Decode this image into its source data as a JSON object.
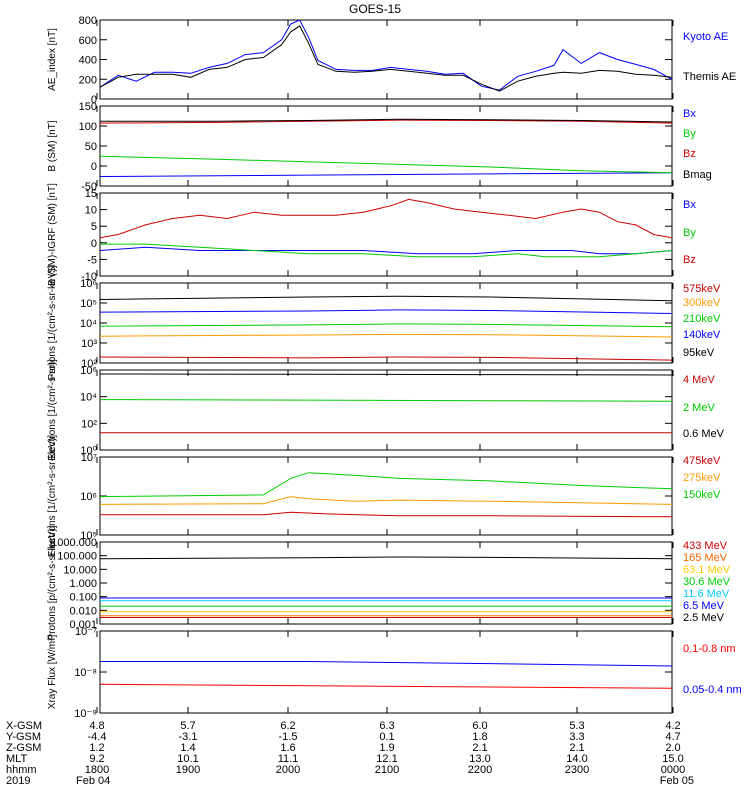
{
  "title": "GOES-15",
  "time_axis": {
    "ticks": [
      "1800",
      "1900",
      "2000",
      "2100",
      "2200",
      "2300",
      "0000"
    ],
    "date_labels": [
      "Feb 04",
      "Feb 05"
    ],
    "rows": [
      {
        "label": "X-GSM",
        "values": [
          "4.8",
          "5.7",
          "6.2",
          "6.3",
          "6.0",
          "5.3",
          "4.2"
        ]
      },
      {
        "label": "Y-GSM",
        "values": [
          "-4.4",
          "-3.1",
          "-1.5",
          "0.1",
          "1.8",
          "3.3",
          "4.7"
        ]
      },
      {
        "label": "Z-GSM",
        "values": [
          "1.2",
          "1.4",
          "1.6",
          "1.9",
          "2.1",
          "2.1",
          "2.0"
        ]
      },
      {
        "label": "MLT",
        "values": [
          "9.2",
          "10.1",
          "11.1",
          "12.1",
          "13.0",
          "14.0",
          "15.0"
        ]
      },
      {
        "label": "hhmm",
        "values": [
          "1800",
          "1900",
          "2000",
          "2100",
          "2200",
          "2300",
          "0000"
        ]
      },
      {
        "label": "2019",
        "values": [
          "Feb 04",
          "",
          "",
          "",
          "",
          "",
          "Feb 05"
        ]
      }
    ]
  },
  "chart_data": [
    {
      "type": "line",
      "ylabel": "AE_index [nT]",
      "yscale": "linear",
      "ylim": [
        0,
        800
      ],
      "yticks": [
        "0",
        "200",
        "400",
        "600",
        "800"
      ],
      "series": [
        {
          "name": "Kyoto AE",
          "color": "#0000ff",
          "x": [
            17.7,
            17.9,
            18.1,
            18.3,
            18.5,
            18.7,
            18.9,
            19.1,
            19.3,
            19.5,
            19.7,
            19.8,
            19.9,
            20.0,
            20.1,
            20.3,
            20.5,
            20.7,
            20.9,
            21.1,
            21.3,
            21.5,
            21.7,
            21.9,
            22.1,
            22.3,
            22.5,
            22.7,
            22.8,
            23.0,
            23.2,
            23.4,
            23.6,
            23.8,
            24.0
          ],
          "values": [
            120,
            240,
            180,
            270,
            270,
            260,
            320,
            360,
            450,
            470,
            600,
            760,
            800,
            620,
            390,
            300,
            290,
            290,
            320,
            300,
            280,
            250,
            260,
            130,
            90,
            230,
            280,
            340,
            500,
            360,
            470,
            400,
            350,
            300,
            200
          ]
        },
        {
          "name": "Themis AE",
          "color": "#000000",
          "x": [
            17.7,
            17.9,
            18.1,
            18.3,
            18.5,
            18.7,
            18.9,
            19.1,
            19.3,
            19.5,
            19.7,
            19.8,
            19.9,
            20.0,
            20.1,
            20.3,
            20.5,
            20.7,
            20.9,
            21.1,
            21.3,
            21.5,
            21.7,
            21.9,
            22.1,
            22.3,
            22.5,
            22.7,
            22.8,
            23.0,
            23.2,
            23.4,
            23.6,
            23.8,
            24.0
          ],
          "values": [
            120,
            220,
            250,
            250,
            250,
            220,
            300,
            320,
            400,
            420,
            550,
            680,
            740,
            560,
            350,
            280,
            270,
            280,
            300,
            280,
            260,
            240,
            240,
            150,
            80,
            180,
            230,
            260,
            270,
            260,
            290,
            280,
            250,
            240,
            220
          ]
        }
      ]
    },
    {
      "type": "line",
      "ylabel": "B (SM) [nT]",
      "yscale": "linear",
      "ylim": [
        -60,
        150
      ],
      "yticks": [
        "-50",
        "0",
        "50",
        "100",
        "150"
      ],
      "series": [
        {
          "name": "Bx",
          "color": "#0000ff",
          "x": [
            17.7,
            24.0
          ],
          "values": [
            -35,
            -25
          ]
        },
        {
          "name": "By",
          "color": "#00cc00",
          "x": [
            17.7,
            19.0,
            20.5,
            22.0,
            23.0,
            24.0
          ],
          "values": [
            18,
            10,
            0,
            -10,
            -20,
            -25
          ]
        },
        {
          "name": "Bz",
          "color": "#cc0000",
          "x": [
            17.7,
            19.0,
            20.0,
            21.0,
            22.0,
            23.0,
            24.0
          ],
          "values": [
            105,
            107,
            110,
            113,
            112,
            110,
            105
          ]
        },
        {
          "name": "Bmag",
          "color": "#000000",
          "x": [
            17.7,
            19.0,
            20.0,
            21.0,
            22.0,
            23.0,
            24.0
          ],
          "values": [
            110,
            110,
            112,
            115,
            114,
            112,
            108
          ]
        }
      ]
    },
    {
      "type": "line",
      "ylabel": "B (SM)-IGRF (SM) [nT]",
      "yscale": "linear",
      "ylim": [
        -10,
        16
      ],
      "yticks": [
        "-10",
        "-5",
        "0",
        "5",
        "10",
        "15"
      ],
      "series": [
        {
          "name": "Bx",
          "color": "#0000ff",
          "x": [
            17.7,
            18.2,
            18.8,
            19.4,
            20.0,
            20.6,
            21.2,
            21.8,
            22.3,
            22.6,
            22.9,
            23.2,
            23.6,
            24.0
          ],
          "values": [
            -2,
            -1,
            -2,
            -2,
            -2,
            -2,
            -3,
            -3,
            -2,
            -2,
            -2,
            -3,
            -3,
            -2
          ]
        },
        {
          "name": "By",
          "color": "#00cc00",
          "x": [
            17.7,
            18.2,
            18.8,
            19.4,
            20.0,
            20.6,
            21.2,
            21.8,
            22.3,
            22.6,
            22.9,
            23.2,
            23.6,
            24.0
          ],
          "values": [
            0,
            0,
            -1,
            -2,
            -3,
            -3,
            -4,
            -4,
            -3,
            -4,
            -4,
            -4,
            -3,
            -2
          ]
        },
        {
          "name": "Bz",
          "color": "#cc0000",
          "x": [
            17.7,
            17.9,
            18.2,
            18.5,
            18.8,
            19.1,
            19.4,
            19.7,
            20.0,
            20.3,
            20.6,
            20.9,
            21.1,
            21.3,
            21.6,
            21.9,
            22.2,
            22.5,
            22.8,
            23.0,
            23.2,
            23.4,
            23.6,
            23.8,
            24.0
          ],
          "values": [
            2,
            3,
            6,
            8,
            9,
            8,
            10,
            9,
            9,
            9,
            10,
            12,
            14,
            13,
            11,
            10,
            9,
            8,
            10,
            11,
            10,
            7,
            6,
            3,
            2
          ]
        }
      ]
    },
    {
      "type": "line",
      "ylabel": "Protons [1/(cm²-s-sr-keV)]",
      "yscale": "log",
      "ylim": [
        100.0,
        1000000.0
      ],
      "yticks": [
        "10²",
        "10³",
        "10⁴",
        "10⁵",
        "10⁶"
      ],
      "series": [
        {
          "name": "575keV",
          "color": "#cc0000",
          "x": [
            17.7,
            20.0,
            21.0,
            22.0,
            24.0
          ],
          "values": [
            200,
            180,
            200,
            190,
            140
          ]
        },
        {
          "name": "300keV",
          "color": "#ff9900",
          "x": [
            17.7,
            20.0,
            21.0,
            22.0,
            24.0
          ],
          "values": [
            2200,
            2500,
            2700,
            2600,
            2000
          ]
        },
        {
          "name": "210keV",
          "color": "#00cc00",
          "x": [
            17.7,
            20.0,
            21.0,
            22.0,
            24.0
          ],
          "values": [
            7000,
            8000,
            9000,
            8500,
            6500
          ]
        },
        {
          "name": "140keV",
          "color": "#0000ff",
          "x": [
            17.7,
            20.0,
            21.0,
            22.0,
            24.0
          ],
          "values": [
            35000,
            40000,
            45000,
            42000,
            30000
          ]
        },
        {
          "name": "95keV",
          "color": "#000000",
          "x": [
            17.7,
            20.0,
            21.0,
            22.0,
            24.0
          ],
          "values": [
            150000,
            200000,
            220000,
            200000,
            130000
          ]
        }
      ]
    },
    {
      "type": "line",
      "ylabel": "Electrons [1/(cm²-s-sr)]",
      "yscale": "log",
      "ylim": [
        1.0,
        1000000.0
      ],
      "yticks": [
        "10⁰",
        "10²",
        "10⁴",
        "10⁶"
      ],
      "series": [
        {
          "name": "4 MeV",
          "color": "#cc0000",
          "x": [
            17.7,
            24.0
          ],
          "values": [
            20,
            20
          ]
        },
        {
          "name": "2 MeV",
          "color": "#00cc00",
          "x": [
            17.7,
            20.0,
            22.0,
            24.0
          ],
          "values": [
            6000,
            5500,
            5000,
            4500
          ]
        },
        {
          "name": "0.6 MeV",
          "color": "#000000",
          "x": [
            17.7,
            20.0,
            22.0,
            24.0
          ],
          "values": [
            500000,
            480000,
            450000,
            420000
          ]
        }
      ]
    },
    {
      "type": "line",
      "ylabel": "Electrons [1/(cm²-s-sr-keV)]",
      "yscale": "log",
      "ylim": [
        10000.0,
        10000000.0
      ],
      "yticks": [
        "10⁵",
        "10⁶",
        "10⁷"
      ],
      "series": [
        {
          "name": "475keV",
          "color": "#cc0000",
          "x": [
            17.7,
            19.5,
            19.8,
            20.2,
            21.0,
            22.0,
            24.0
          ],
          "values": [
            60000,
            60000,
            75000,
            65000,
            55000,
            55000,
            50000
          ]
        },
        {
          "name": "275keV",
          "color": "#ff9900",
          "x": [
            17.7,
            19.5,
            19.8,
            20.0,
            20.5,
            21.0,
            22.0,
            24.0
          ],
          "values": [
            150000,
            160000,
            300000,
            250000,
            200000,
            220000,
            200000,
            150000
          ]
        },
        {
          "name": "150keV",
          "color": "#00cc00",
          "x": [
            17.7,
            19.5,
            19.8,
            20.0,
            20.5,
            21.0,
            22.0,
            23.0,
            24.0
          ],
          "values": [
            300000,
            350000,
            1500000,
            2500000,
            2000000,
            1500000,
            1200000,
            800000,
            600000
          ]
        }
      ]
    },
    {
      "type": "line",
      "ylabel": "Protons [p/(cm²-s-sr-keV)]",
      "yscale": "log",
      "ylim": [
        0.001,
        1000
      ],
      "yticks": [
        "0.001",
        "0.010",
        "0.100",
        "1.000",
        "10.000",
        "100.000",
        "1000.000"
      ],
      "series": [
        {
          "name": "433 MeV",
          "color": "#cc0000",
          "x": [
            17.7,
            24.0
          ],
          "values": [
            0.003,
            0.003
          ]
        },
        {
          "name": "165 MeV",
          "color": "#ff6600",
          "x": [
            17.7,
            24.0
          ],
          "values": [
            0.004,
            0.004
          ]
        },
        {
          "name": "63.1 MeV",
          "color": "#ffcc00",
          "x": [
            17.7,
            24.0
          ],
          "values": [
            0.008,
            0.008
          ]
        },
        {
          "name": "30.6 MeV",
          "color": "#00cc00",
          "x": [
            17.7,
            24.0
          ],
          "values": [
            0.02,
            0.02
          ]
        },
        {
          "name": "11.6 MeV",
          "color": "#00ccff",
          "x": [
            17.7,
            24.0
          ],
          "values": [
            0.05,
            0.05
          ]
        },
        {
          "name": "6.5 MeV",
          "color": "#0000ff",
          "x": [
            17.7,
            24.0
          ],
          "values": [
            0.08,
            0.08
          ]
        },
        {
          "name": "2.5 MeV",
          "color": "#000000",
          "x": [
            17.7,
            20.0,
            21.0,
            22.0,
            24.0
          ],
          "values": [
            60,
            70,
            80,
            75,
            60
          ]
        }
      ]
    },
    {
      "type": "line",
      "ylabel": "Xray Flux [W/m²]",
      "yscale": "log",
      "ylim": [
        1e-09,
        1e-07
      ],
      "yticks": [
        "10⁻⁹",
        "10⁻⁸",
        "10⁻⁷"
      ],
      "series": [
        {
          "name": "0.1-0.8 nm",
          "color": "#ff0000",
          "x": [
            17.7,
            24.0
          ],
          "values": [
            5e-09,
            4e-09
          ]
        },
        {
          "name": "0.05-0.4 nm",
          "color": "#0000ff",
          "x": [
            17.7,
            20.0,
            22.0,
            24.0
          ],
          "values": [
            1.8e-08,
            1.8e-08,
            1.6e-08,
            1.4e-08
          ]
        }
      ]
    }
  ]
}
